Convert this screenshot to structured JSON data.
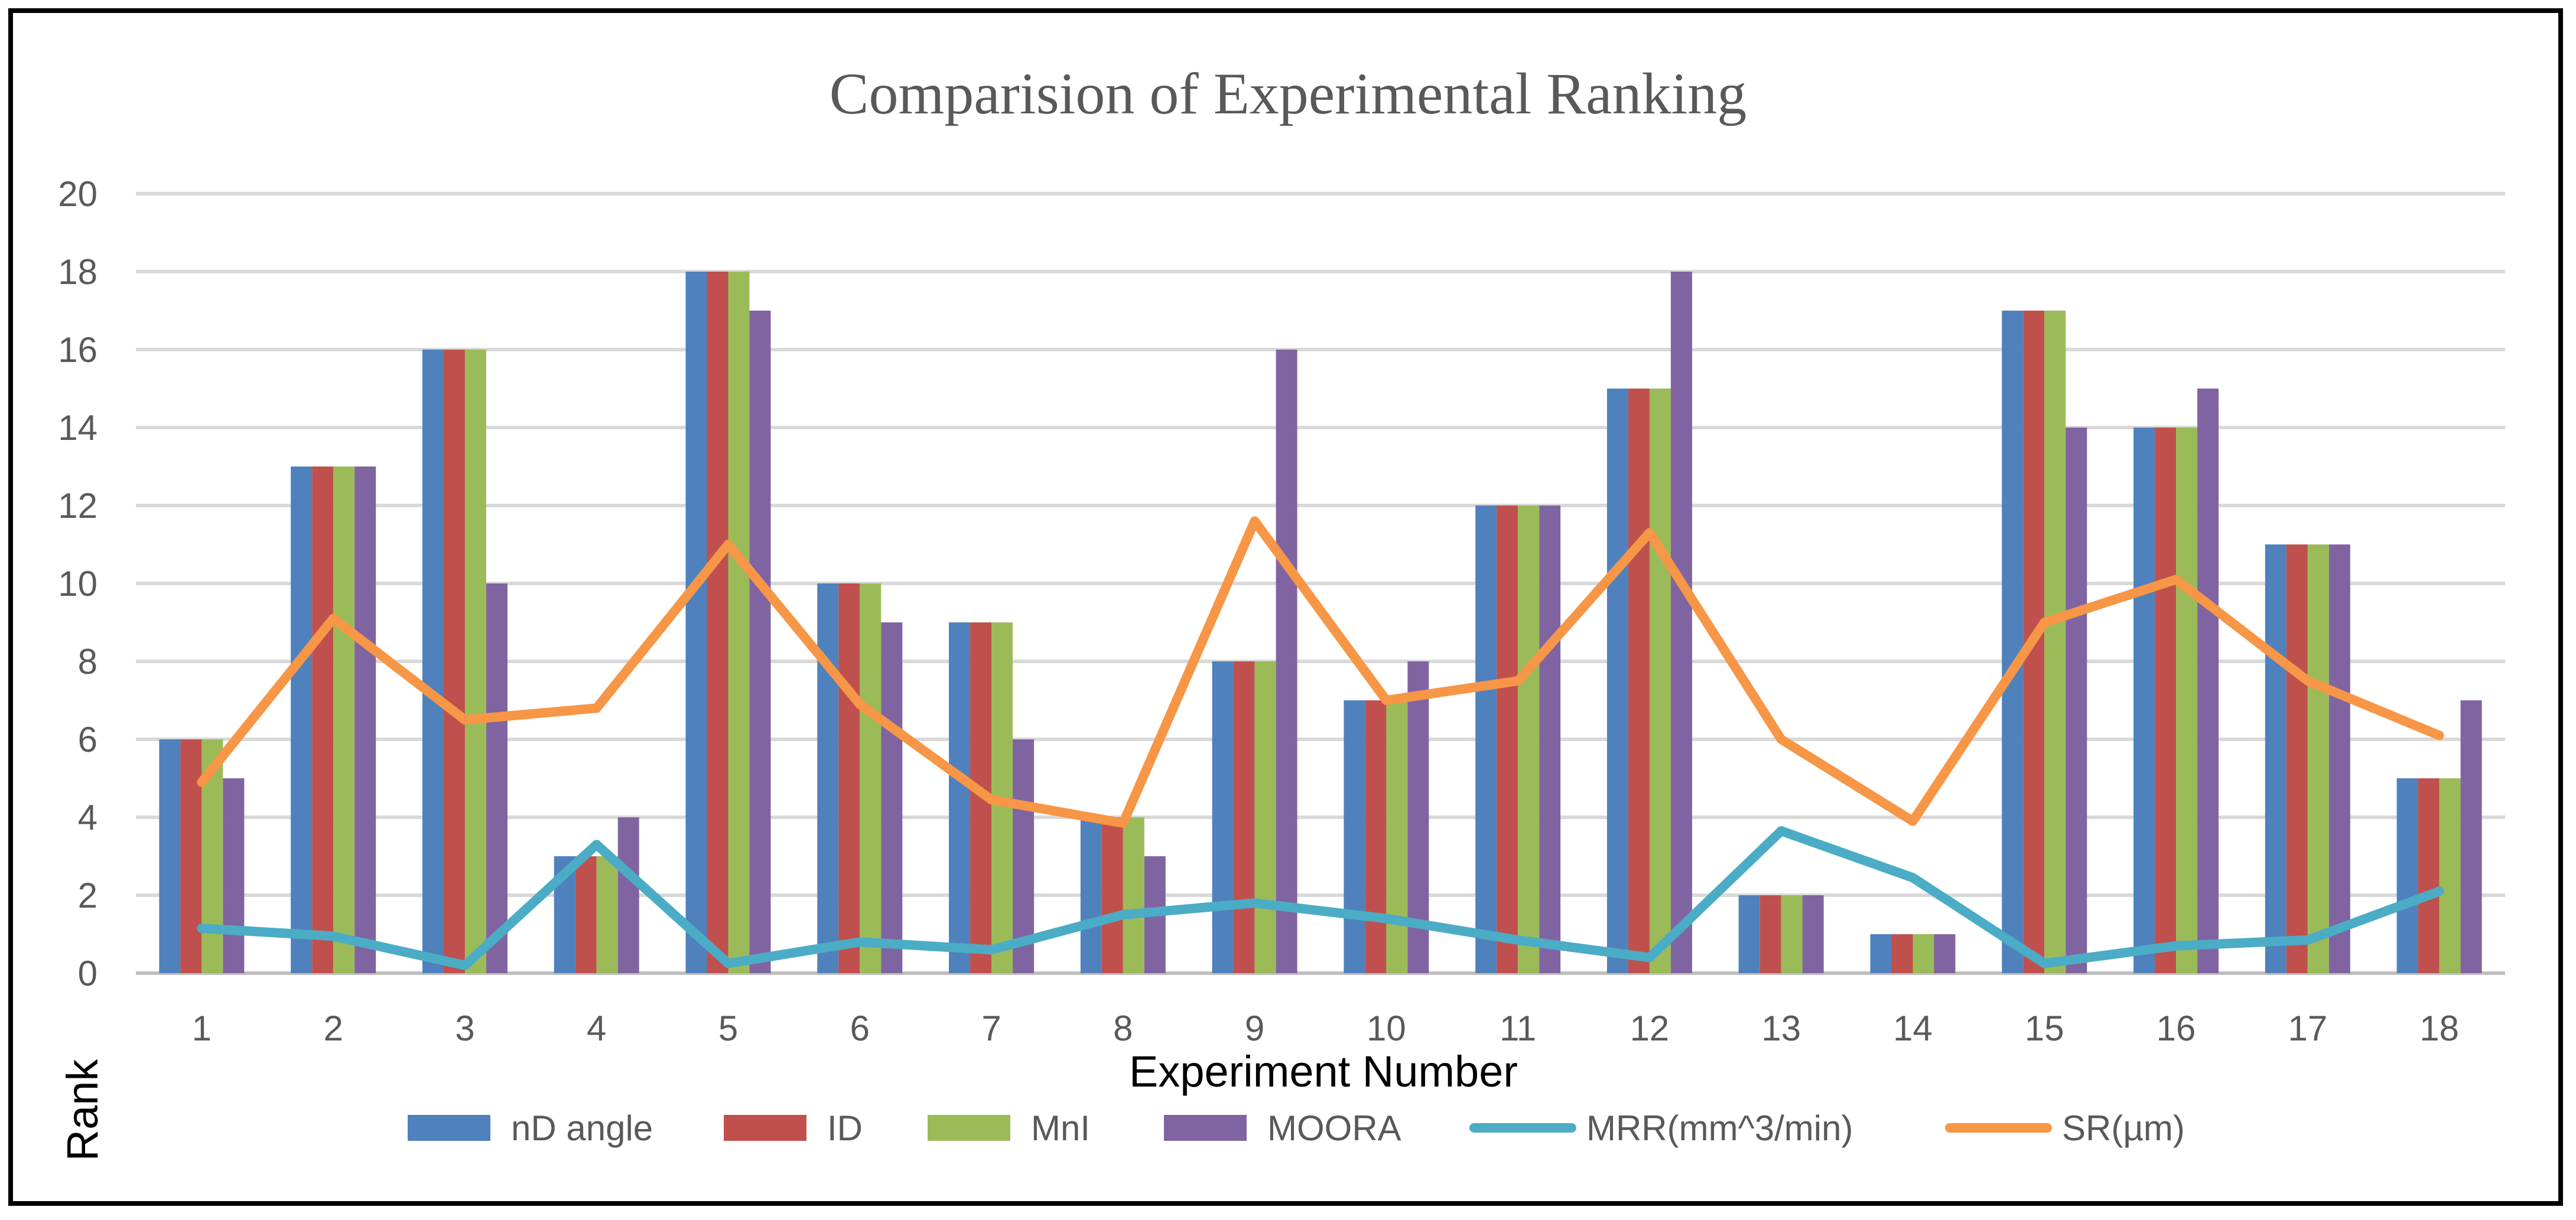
{
  "chart_data": {
    "type": "bar",
    "title": "Comparision of Experimental Ranking",
    "xlabel": "Experiment Number",
    "ylabel": "Rank",
    "ylim": [
      0,
      20
    ],
    "ytick_step": 2,
    "grid": true,
    "legend_position": "bottom",
    "categories": [
      "1",
      "2",
      "3",
      "4",
      "5",
      "6",
      "7",
      "8",
      "9",
      "10",
      "11",
      "12",
      "13",
      "14",
      "15",
      "16",
      "17",
      "18"
    ],
    "series": [
      {
        "name": "nD angle",
        "kind": "bar",
        "color": "#4f81bd",
        "values": [
          6,
          13,
          16,
          3,
          18,
          10,
          9,
          4,
          8,
          7,
          12,
          15,
          2,
          1,
          17,
          14,
          11,
          5
        ]
      },
      {
        "name": "ID",
        "kind": "bar",
        "color": "#c0504d",
        "values": [
          6,
          13,
          16,
          3,
          18,
          10,
          9,
          4,
          8,
          7,
          12,
          15,
          2,
          1,
          17,
          14,
          11,
          5
        ]
      },
      {
        "name": "MnI",
        "kind": "bar",
        "color": "#9bbb59",
        "values": [
          6,
          13,
          16,
          3,
          18,
          10,
          9,
          4,
          8,
          7,
          12,
          15,
          2,
          1,
          17,
          14,
          11,
          5
        ]
      },
      {
        "name": "MOORA",
        "kind": "bar",
        "color": "#8064a2",
        "values": [
          5,
          13,
          10,
          4,
          17,
          9,
          6,
          3,
          16,
          8,
          12,
          18,
          2,
          1,
          14,
          15,
          11,
          7
        ]
      },
      {
        "name": "MRR(mm^3/min)",
        "kind": "line",
        "color": "#4bacc6",
        "values": [
          1.15,
          0.95,
          0.2,
          3.3,
          0.25,
          0.8,
          0.6,
          1.5,
          1.8,
          1.4,
          0.85,
          0.4,
          3.65,
          2.45,
          0.25,
          0.7,
          0.85,
          2.1
        ]
      },
      {
        "name": "SR(µm)",
        "kind": "line",
        "color": "#f79646",
        "values": [
          4.9,
          9.1,
          6.5,
          6.8,
          11.0,
          6.9,
          4.45,
          3.85,
          11.6,
          7.0,
          7.5,
          11.3,
          6.0,
          3.9,
          9.0,
          10.1,
          7.5,
          6.1
        ]
      }
    ]
  }
}
